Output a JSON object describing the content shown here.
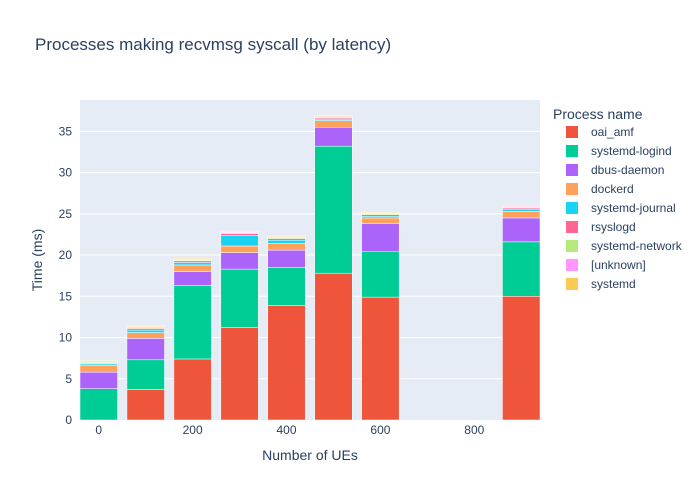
{
  "chart_data": {
    "type": "bar",
    "stacked": true,
    "title": "Processes making recvmsg syscall (by latency)",
    "xlabel": "Number of UEs",
    "ylabel": "Time (ms)",
    "xlim": [
      -40,
      940
    ],
    "ylim": [
      0,
      38.8
    ],
    "xticks": [
      0,
      200,
      400,
      600,
      800
    ],
    "yticks": [
      0,
      5,
      10,
      15,
      20,
      25,
      30,
      35
    ],
    "bar_width": 80,
    "grid": true,
    "legend_title": "Process name",
    "legend_position": "right",
    "x": [
      0,
      100,
      200,
      300,
      400,
      500,
      600,
      900
    ],
    "series": [
      {
        "name": "oai_amf",
        "color": "#EF553B",
        "values": [
          0,
          3.7,
          7.4,
          11.2,
          13.9,
          17.8,
          14.9,
          15.0
        ]
      },
      {
        "name": "systemd-logind",
        "color": "#00CC96",
        "values": [
          3.8,
          3.6,
          8.9,
          7.1,
          4.6,
          15.4,
          5.5,
          6.6
        ]
      },
      {
        "name": "dbus-daemon",
        "color": "#AB63FA",
        "values": [
          2.0,
          2.6,
          1.7,
          2.0,
          2.1,
          2.3,
          3.4,
          2.9
        ]
      },
      {
        "name": "dockerd",
        "color": "#FFA15A",
        "values": [
          0.8,
          0.7,
          0.8,
          0.8,
          0.8,
          0.8,
          0.7,
          0.8
        ]
      },
      {
        "name": "systemd-journal",
        "color": "#19D3F3",
        "values": [
          0.2,
          0.3,
          0.3,
          1.3,
          0.4,
          0.1,
          0.2,
          0.2
        ]
      },
      {
        "name": "rsyslogd",
        "color": "#FF6692",
        "values": [
          0.1,
          0.2,
          0.2,
          0.2,
          0.2,
          0.2,
          0.2,
          0.2
        ]
      },
      {
        "name": "systemd-network",
        "color": "#B6E880",
        "values": [
          0.1,
          0.1,
          0.1,
          0.1,
          0.1,
          0.1,
          0.1,
          0.1
        ]
      },
      {
        "name": "[unknown]",
        "color": "#FF97FF",
        "values": [
          0.1,
          0.1,
          0.1,
          0.1,
          0.1,
          0.1,
          0.1,
          0.1
        ]
      },
      {
        "name": "systemd",
        "color": "#FECB52",
        "values": [
          0.1,
          0.1,
          0.1,
          0.1,
          0.1,
          0.1,
          0.1,
          0.1
        ]
      }
    ]
  },
  "colors": {
    "plot_background": "#E5ECF6",
    "gridline": "#ffffff",
    "text": "#2a3f5f"
  }
}
